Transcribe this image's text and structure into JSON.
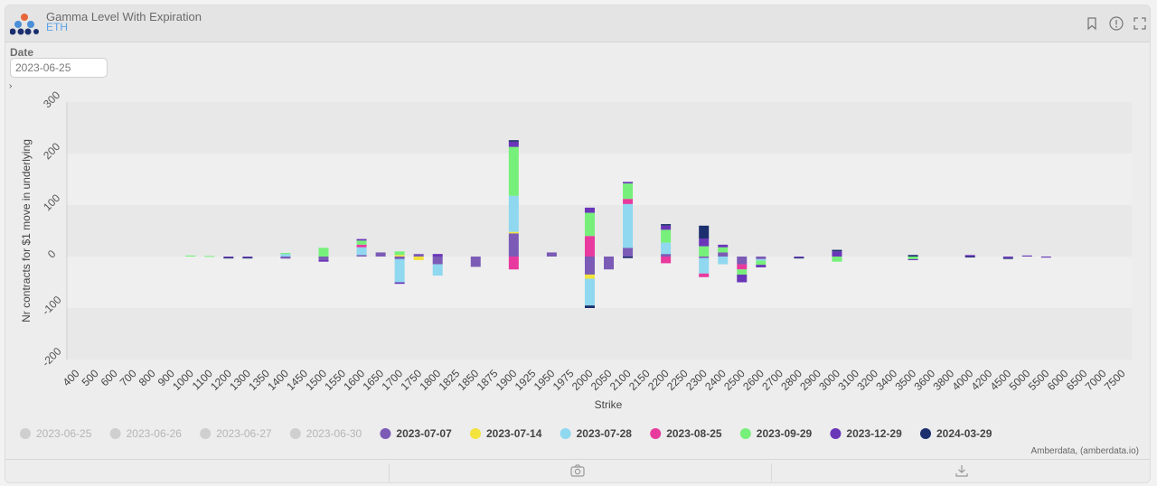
{
  "header": {
    "title": "Gamma Level With Expiration",
    "subtitle": "ETH"
  },
  "controls": {
    "date_label": "Date",
    "date_value": "2023-06-25"
  },
  "credit": "Amberdata, (amberdata.io)",
  "chart_data": {
    "type": "bar",
    "stacked": true,
    "xlabel": "Strike",
    "ylabel": "Nr contracts for $1 move in underlying",
    "ylim": [
      -200,
      300
    ],
    "yticks": [
      -200,
      -100,
      0,
      100,
      200,
      300
    ],
    "categories": [
      "400",
      "500",
      "600",
      "700",
      "800",
      "900",
      "1000",
      "1100",
      "1200",
      "1300",
      "1350",
      "1400",
      "1450",
      "1500",
      "1550",
      "1600",
      "1650",
      "1700",
      "1750",
      "1800",
      "1825",
      "1850",
      "1875",
      "1900",
      "1925",
      "1950",
      "1975",
      "2000",
      "2050",
      "2100",
      "2150",
      "2200",
      "2250",
      "2300",
      "2400",
      "2500",
      "2600",
      "2700",
      "2800",
      "2900",
      "3000",
      "3100",
      "3200",
      "3400",
      "3500",
      "3600",
      "3800",
      "4000",
      "4200",
      "4500",
      "5000",
      "5500",
      "6000",
      "6500",
      "7000",
      "7500"
    ],
    "legend_position": "bottom",
    "series": [
      {
        "name": "2023-06-25",
        "color": "#c8c8c8",
        "visible": false,
        "values": {}
      },
      {
        "name": "2023-06-26",
        "color": "#c8c8c8",
        "visible": false,
        "values": {}
      },
      {
        "name": "2023-06-27",
        "color": "#c8c8c8",
        "visible": false,
        "values": {}
      },
      {
        "name": "2023-06-30",
        "color": "#c8c8c8",
        "visible": false,
        "values": {}
      },
      {
        "name": "2023-07-07",
        "color": "#7b5bb6",
        "visible": true,
        "values": {
          "1400": -4,
          "1500": -7,
          "1600": 3,
          "1650": 8,
          "1700": -5,
          "1750": 5,
          "1800": -15,
          "1850": -20,
          "1900": 45,
          "1950": 8,
          "2000": -35,
          "2050": -25,
          "2100": 17,
          "2200": 5,
          "2300": -3,
          "2400": 8,
          "2500": -15,
          "2600": -5
        }
      },
      {
        "name": "2023-07-14",
        "color": "#f3e33c",
        "visible": true,
        "values": {
          "1700": 3,
          "1750": -7,
          "1900": 3,
          "2000": -8
        }
      },
      {
        "name": "2023-07-28",
        "color": "#8fd8ef",
        "visible": true,
        "values": {
          "1400": 5,
          "1600": 15,
          "1700": -45,
          "1800": -22,
          "1900": 70,
          "2000": -52,
          "2100": 85,
          "2200": 22,
          "2300": -30,
          "2400": -15,
          "2600": -3
        }
      },
      {
        "name": "2023-08-25",
        "color": "#e83a9e",
        "visible": true,
        "values": {
          "1600": 5,
          "1900": -25,
          "2000": 40,
          "2100": 10,
          "2200": -13,
          "2300": -7,
          "2500": -10
        }
      },
      {
        "name": "2023-09-29",
        "color": "#76f07a",
        "visible": true,
        "values": {
          "1000": 2,
          "1100": 1,
          "1400": 2,
          "1500": 17,
          "1600": 8,
          "1700": 7,
          "1900": 95,
          "2000": 45,
          "2100": 30,
          "2200": 25,
          "2300": 20,
          "2400": 10,
          "2500": -10,
          "2600": -8,
          "3000": -10,
          "3500": -5
        }
      },
      {
        "name": "2023-12-29",
        "color": "#6a36b8",
        "visible": true,
        "values": {
          "1200": -2,
          "1300": -2,
          "1500": -3,
          "1600": 3,
          "1700": -3,
          "1800": 5,
          "1900": 10,
          "2000": 10,
          "2100": 3,
          "2200": 8,
          "2300": 15,
          "2400": 5,
          "2500": -15,
          "2600": -5,
          "2800": -2,
          "3000": 10,
          "3500": -2,
          "4000": 3,
          "4500": -3,
          "5000": 2,
          "5500": -2
        }
      },
      {
        "name": "2024-03-29",
        "color": "#1b2f6e",
        "visible": true,
        "values": {
          "1200": -1,
          "1300": -1,
          "1900": 3,
          "2000": -5,
          "2100": -3,
          "2200": 3,
          "2300": 25,
          "2800": -1,
          "3000": 3,
          "3500": 3,
          "4000": -1,
          "4500": -1
        }
      }
    ]
  }
}
